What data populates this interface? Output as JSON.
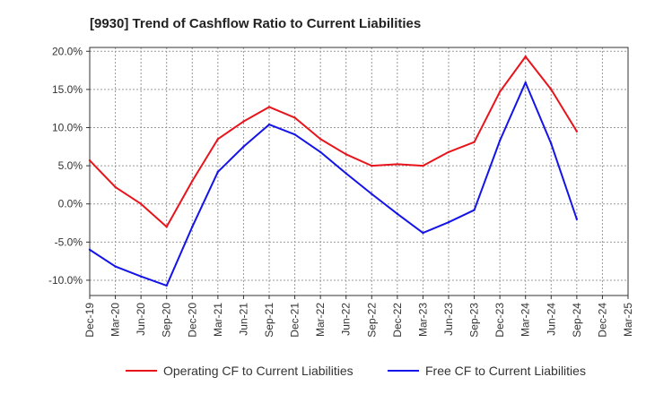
{
  "chart_data": {
    "type": "line",
    "title": "[9930]  Trend of Cashflow Ratio to Current Liabilities",
    "xlabel": "",
    "ylabel": "",
    "categories": [
      "Dec-19",
      "Mar-20",
      "Jun-20",
      "Sep-20",
      "Dec-20",
      "Mar-21",
      "Jun-21",
      "Sep-21",
      "Dec-21",
      "Mar-22",
      "Jun-22",
      "Sep-22",
      "Dec-22",
      "Mar-23",
      "Jun-23",
      "Sep-23",
      "Dec-23",
      "Mar-24",
      "Jun-24",
      "Sep-24",
      "Dec-24",
      "Mar-25"
    ],
    "yticks": [
      "20.0%",
      "15.0%",
      "10.0%",
      "5.0%",
      "0.0%",
      "-5.0%",
      "-10.0%"
    ],
    "ylim": [
      -12,
      20.5
    ],
    "grid": true,
    "legend_position": "bottom",
    "series": [
      {
        "name": "Operating CF to Current Liabilities",
        "color": "#e8141b",
        "values": [
          5.7,
          2.2,
          0.0,
          -3.0,
          3.0,
          8.5,
          10.8,
          12.7,
          11.3,
          8.5,
          6.5,
          5.0,
          5.2,
          5.0,
          6.8,
          8.1,
          14.7,
          19.3,
          15.0,
          9.5,
          null,
          null
        ]
      },
      {
        "name": "Free CF to Current Liabilities",
        "color": "#1414e8",
        "values": [
          -6.0,
          -8.2,
          -9.5,
          -10.7,
          -3.0,
          4.2,
          7.5,
          10.4,
          9.1,
          6.8,
          4.0,
          1.3,
          -1.3,
          -3.8,
          -2.4,
          -0.8,
          8.3,
          15.9,
          7.9,
          -2.0,
          null,
          null
        ]
      }
    ]
  }
}
